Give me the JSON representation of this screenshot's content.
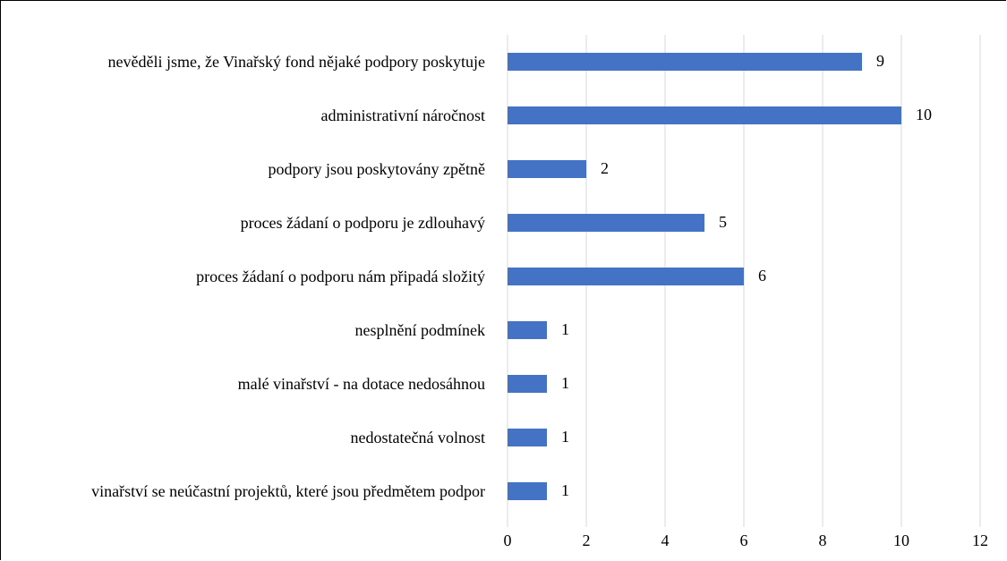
{
  "chart_data": {
    "type": "bar",
    "orientation": "horizontal",
    "categories": [
      "nevěděli jsme, že Vinařský fond nějaké podpory poskytuje",
      "administrativní náročnost",
      "podpory jsou poskytovány zpětně",
      "proces žádaní o podporu je zdlouhavý",
      "proces žádaní o podporu nám připadá složitý",
      "nesplnění podmínek",
      "malé vinařství - na dotace nedosáhnou",
      "nedostatečná volnost",
      "vinařství se neúčastní projektů, které jsou předmětem podpor"
    ],
    "values": [
      9,
      10,
      2,
      5,
      6,
      1,
      1,
      1,
      1
    ],
    "color": "#4472c4",
    "xlim": [
      0,
      12
    ],
    "xticks": [
      0,
      2,
      4,
      6,
      8,
      10,
      12
    ],
    "grid": true
  }
}
